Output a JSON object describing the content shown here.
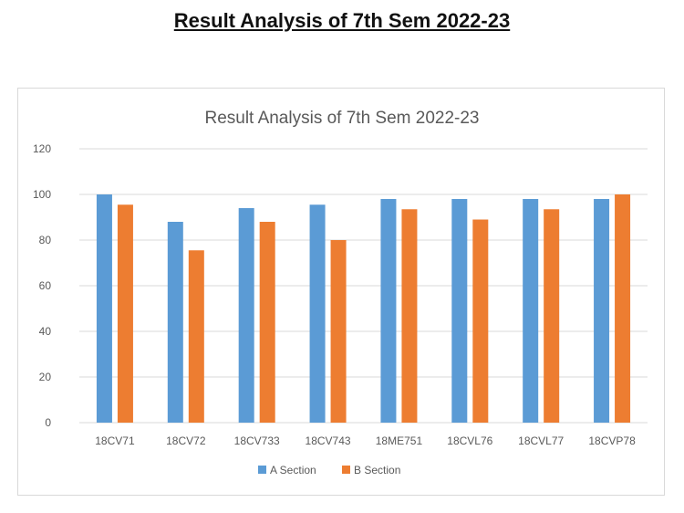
{
  "page": {
    "heading": "Result Analysis of 7th Sem 2022-23"
  },
  "chart_data": {
    "type": "bar",
    "title": "Result Analysis of 7th Sem 2022-23",
    "xlabel": "",
    "ylabel": "",
    "ylim": [
      0,
      120
    ],
    "yticks": [
      0,
      20,
      40,
      60,
      80,
      100,
      120
    ],
    "grid": true,
    "legend_position": "bottom",
    "categories": [
      "18CV71",
      "18CV72",
      "18CV733",
      "18CV743",
      "18ME751",
      "18CVL76",
      "18CVL77",
      "18CVP78"
    ],
    "series": [
      {
        "name": "A Section",
        "color": "#5b9bd5",
        "values": [
          100,
          88,
          94,
          95.5,
          98,
          98,
          98,
          98
        ]
      },
      {
        "name": "B Section",
        "color": "#ed7d31",
        "values": [
          95.5,
          75.5,
          88,
          80,
          93.5,
          89,
          93.5,
          100
        ]
      }
    ]
  }
}
